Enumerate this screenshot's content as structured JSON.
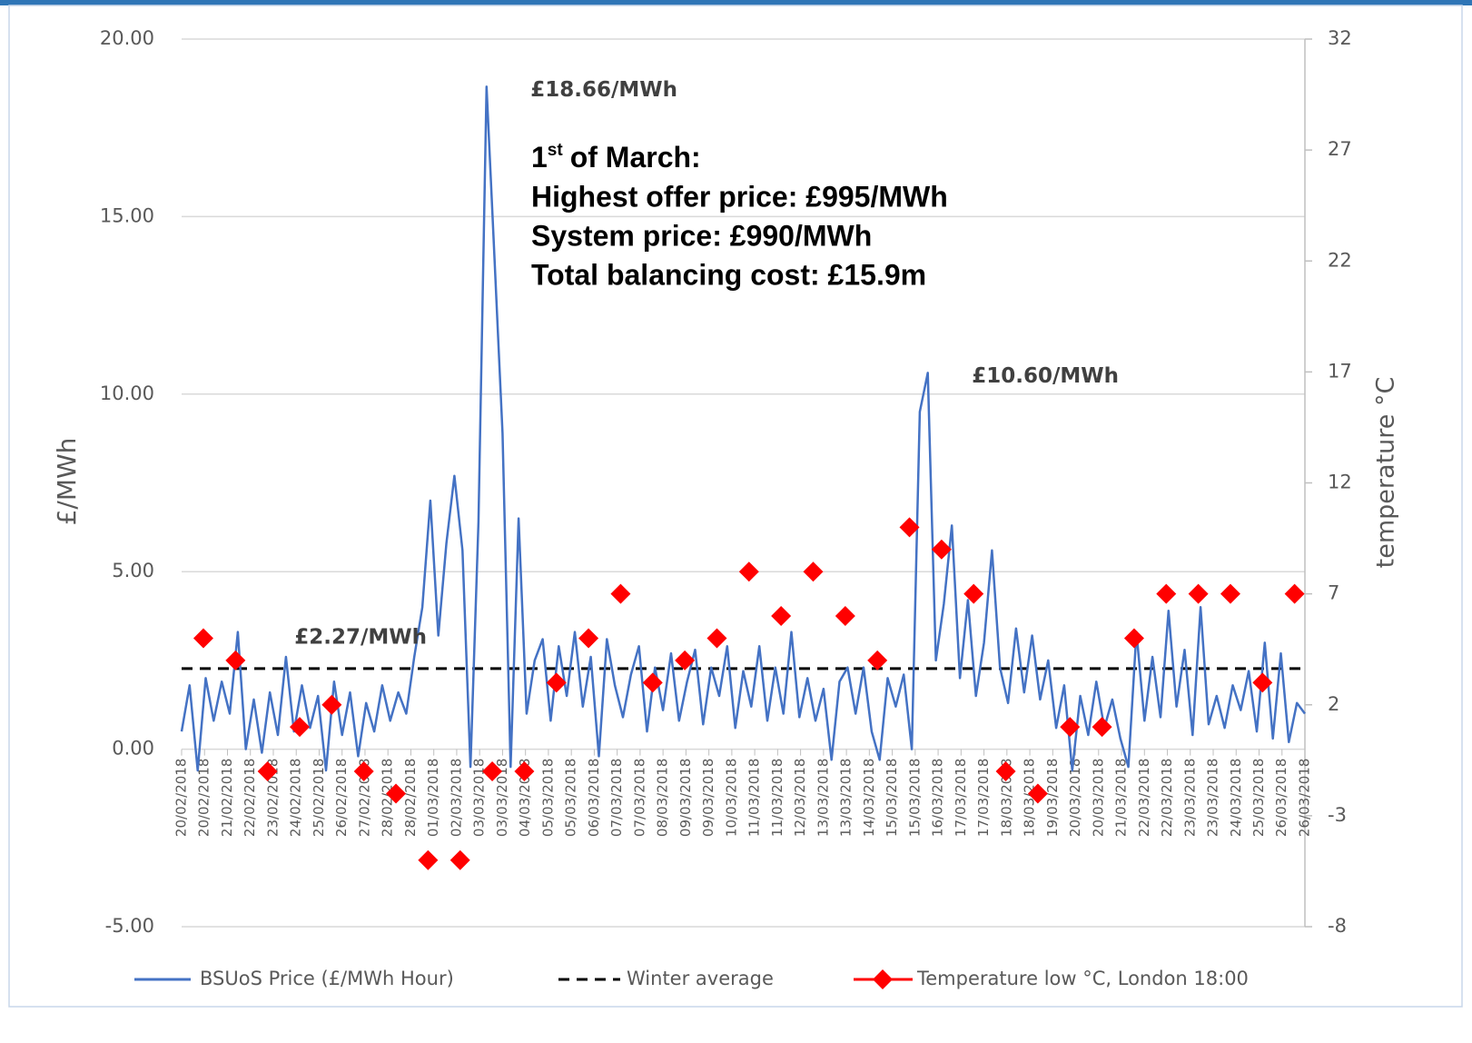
{
  "chart_data": {
    "type": "line",
    "y_axis_label": "£/MWh",
    "y2_axis_label": "temperature °C",
    "xlim": [
      0,
      49
    ],
    "xticks": [
      {
        "value": 0,
        "label": "20/02/2018"
      },
      {
        "value": 1,
        "label": "20/02/2018"
      },
      {
        "value": 2,
        "label": "21/02/2018"
      },
      {
        "value": 3,
        "label": "22/02/2018"
      },
      {
        "value": 4,
        "label": "23/02/2018"
      },
      {
        "value": 5,
        "label": "24/02/2018"
      },
      {
        "value": 6,
        "label": "25/02/2018"
      },
      {
        "value": 7,
        "label": "26/02/2018"
      },
      {
        "value": 8,
        "label": "27/02/2018"
      },
      {
        "value": 9,
        "label": "28/02/2018"
      },
      {
        "value": 10,
        "label": "28/02/2018"
      },
      {
        "value": 11,
        "label": "01/03/2018"
      },
      {
        "value": 12,
        "label": "02/03/2018"
      },
      {
        "value": 13,
        "label": "03/03/2018"
      },
      {
        "value": 14,
        "label": "03/03/2018"
      },
      {
        "value": 15,
        "label": "04/03/2018"
      },
      {
        "value": 16,
        "label": "05/03/2018"
      },
      {
        "value": 17,
        "label": "05/03/2018"
      },
      {
        "value": 18,
        "label": "06/03/2018"
      },
      {
        "value": 19,
        "label": "07/03/2018"
      },
      {
        "value": 20,
        "label": "07/03/2018"
      },
      {
        "value": 21,
        "label": "08/03/2018"
      },
      {
        "value": 22,
        "label": "09/03/2018"
      },
      {
        "value": 23,
        "label": "09/03/2018"
      },
      {
        "value": 24,
        "label": "10/03/2018"
      },
      {
        "value": 25,
        "label": "11/03/2018"
      },
      {
        "value": 26,
        "label": "11/03/2018"
      },
      {
        "value": 27,
        "label": "12/03/2018"
      },
      {
        "value": 28,
        "label": "13/03/2018"
      },
      {
        "value": 29,
        "label": "13/03/2018"
      },
      {
        "value": 30,
        "label": "14/03/2018"
      },
      {
        "value": 31,
        "label": "15/03/2018"
      },
      {
        "value": 32,
        "label": "15/03/2018"
      },
      {
        "value": 33,
        "label": "16/03/2018"
      },
      {
        "value": 34,
        "label": "17/03/2018"
      },
      {
        "value": 35,
        "label": "17/03/2018"
      },
      {
        "value": 36,
        "label": "18/03/2018"
      },
      {
        "value": 37,
        "label": "18/03/2018"
      },
      {
        "value": 38,
        "label": "19/03/2018"
      },
      {
        "value": 39,
        "label": "20/03/2018"
      },
      {
        "value": 40,
        "label": "20/03/2018"
      },
      {
        "value": 41,
        "label": "21/03/2018"
      },
      {
        "value": 42,
        "label": "22/03/2018"
      },
      {
        "value": 43,
        "label": "22/03/2018"
      },
      {
        "value": 44,
        "label": "23/03/2018"
      },
      {
        "value": 45,
        "label": "23/03/2018"
      },
      {
        "value": 46,
        "label": "24/03/2018"
      },
      {
        "value": 47,
        "label": "25/03/2018"
      },
      {
        "value": 48,
        "label": "26/03/2018"
      },
      {
        "value": 49,
        "label": "26/03/2018"
      }
    ],
    "ylim": [
      -5,
      20
    ],
    "yticks": [
      {
        "value": -5,
        "label": "-5.00"
      },
      {
        "value": 0,
        "label": "0.00"
      },
      {
        "value": 5,
        "label": "5.00"
      },
      {
        "value": 10,
        "label": "10.00"
      },
      {
        "value": 15,
        "label": "15.00"
      },
      {
        "value": 20,
        "label": "20.00"
      }
    ],
    "y2lim": [
      -8,
      32
    ],
    "y2ticks": [
      -8,
      -3,
      2,
      7,
      12,
      17,
      22,
      27,
      32
    ],
    "grid": true,
    "legend": "bottom",
    "series": [
      {
        "name": "BSUoS Price (£/MWh Hour)",
        "color": "#4472c4",
        "x": [
          0,
          0.35,
          0.7,
          1.05,
          1.4,
          1.75,
          2.1,
          2.45,
          2.8,
          3.15,
          3.5,
          3.85,
          4.2,
          4.55,
          4.9,
          5.25,
          5.6,
          5.95,
          6.3,
          6.65,
          7,
          7.35,
          7.7,
          8.05,
          8.4,
          8.75,
          9.1,
          9.45,
          9.8,
          10.15,
          10.5,
          10.85,
          11.2,
          11.55,
          11.9,
          12.25,
          12.6,
          12.95,
          13.3,
          13.65,
          14,
          14.35,
          14.7,
          15.05,
          15.4,
          15.75,
          16.1,
          16.45,
          16.8,
          17.15,
          17.5,
          17.85,
          18.2,
          18.55,
          18.9,
          19.25,
          19.6,
          19.95,
          20.3,
          20.65,
          21,
          21.35,
          21.7,
          22.05,
          22.4,
          22.75,
          23.1,
          23.45,
          23.8,
          24.15,
          24.5,
          24.85,
          25.2,
          25.55,
          25.9,
          26.25,
          26.6,
          26.95,
          27.3,
          27.65,
          28,
          28.35,
          28.7,
          29.05,
          29.4,
          29.75,
          30.1,
          30.45,
          30.8,
          31.15,
          31.5,
          31.85,
          32.2,
          32.55,
          32.9,
          33.25,
          33.6,
          33.95,
          34.3,
          34.65,
          35,
          35.35,
          35.7,
          36.05,
          36.4,
          36.75,
          37.1,
          37.45,
          37.8,
          38.15,
          38.5,
          38.85,
          39.2,
          39.55,
          39.9,
          40.25,
          40.6,
          40.95,
          41.3,
          41.65,
          42,
          42.35,
          42.7,
          43.05,
          43.4,
          43.75,
          44.1,
          44.45,
          44.8,
          45.15,
          45.5,
          45.85,
          46.2,
          46.55,
          46.9,
          47.25,
          47.6,
          47.95,
          48.3,
          48.65,
          49
        ],
        "values": [
          0.5,
          1.8,
          -0.6,
          2.0,
          0.8,
          1.9,
          1.0,
          3.3,
          0.0,
          1.4,
          -0.1,
          1.6,
          0.4,
          2.6,
          0.5,
          1.8,
          0.6,
          1.5,
          -0.6,
          1.9,
          0.4,
          1.6,
          -0.2,
          1.3,
          0.5,
          1.8,
          0.8,
          1.6,
          1.0,
          2.6,
          4.0,
          7.0,
          3.2,
          5.8,
          7.7,
          5.6,
          -0.5,
          6.4,
          18.66,
          13.8,
          8.9,
          -0.5,
          6.5,
          1.0,
          2.5,
          3.1,
          0.8,
          2.9,
          1.5,
          3.3,
          1.2,
          2.6,
          -0.2,
          3.1,
          1.8,
          0.9,
          2.1,
          2.9,
          0.5,
          2.3,
          1.1,
          2.7,
          0.8,
          1.9,
          2.8,
          0.7,
          2.3,
          1.5,
          2.9,
          0.6,
          2.2,
          1.2,
          2.9,
          0.8,
          2.3,
          1.0,
          3.3,
          0.9,
          2.0,
          0.8,
          1.7,
          -0.3,
          1.9,
          2.3,
          1.0,
          2.3,
          0.5,
          -0.3,
          2.0,
          1.2,
          2.1,
          0.0,
          9.5,
          10.6,
          2.5,
          4.1,
          6.3,
          2.0,
          4.2,
          1.5,
          3.0,
          5.6,
          2.3,
          1.3,
          3.4,
          1.6,
          3.2,
          1.4,
          2.5,
          0.6,
          1.8,
          -0.6,
          1.5,
          0.4,
          1.9,
          0.6,
          1.4,
          0.3,
          -0.5,
          3.3,
          0.8,
          2.6,
          0.9,
          3.9,
          1.2,
          2.8,
          0.4,
          4.0,
          0.7,
          1.5,
          0.6,
          1.8,
          1.1,
          2.2,
          0.5,
          3.0,
          0.3,
          2.7,
          0.2,
          1.3,
          1.0
        ]
      },
      {
        "name": "Temperature low °C, London 18:00",
        "color": "#ff0000",
        "axis": "y2",
        "x": [
          0.95,
          2.35,
          3.75,
          5.15,
          6.55,
          7.95,
          9.35,
          10.75,
          12.15,
          13.55,
          14.95,
          16.35,
          17.75,
          19.15,
          20.55,
          21.95,
          23.35,
          24.75,
          26.15,
          27.55,
          28.95,
          30.35,
          31.75,
          33.15,
          34.55,
          35.95,
          37.35,
          38.75,
          40.15,
          41.55,
          42.95,
          44.35,
          45.75,
          47.15,
          48.55
        ],
        "values": [
          5,
          4,
          -1,
          1,
          2,
          -1,
          -2,
          -5,
          -5,
          -1,
          -1,
          3,
          5,
          7,
          3,
          4,
          5,
          8,
          6,
          8,
          6,
          4,
          10,
          9,
          7,
          -1,
          -2,
          1,
          1,
          5,
          7,
          7,
          7,
          3,
          7
        ]
      }
    ],
    "winter_average": {
      "name": "Winter average",
      "value": 2.27,
      "color": "#000000"
    },
    "annotations": [
      {
        "text": "£18.66/MWh",
        "x": 14.35,
        "y": 18.66
      },
      {
        "text": "£10.60/MWh",
        "x": 33.6,
        "y": 10.6
      },
      {
        "text": "£2.27/MWh",
        "x": 4.05,
        "y": 2.27
      }
    ],
    "note": {
      "day": "1",
      "suffix": "st",
      "rest": "of March:",
      "lines": [
        "Highest offer price: £995/MWh",
        "System price: £990/MWh",
        "Total balancing cost: £15.9m"
      ]
    }
  }
}
